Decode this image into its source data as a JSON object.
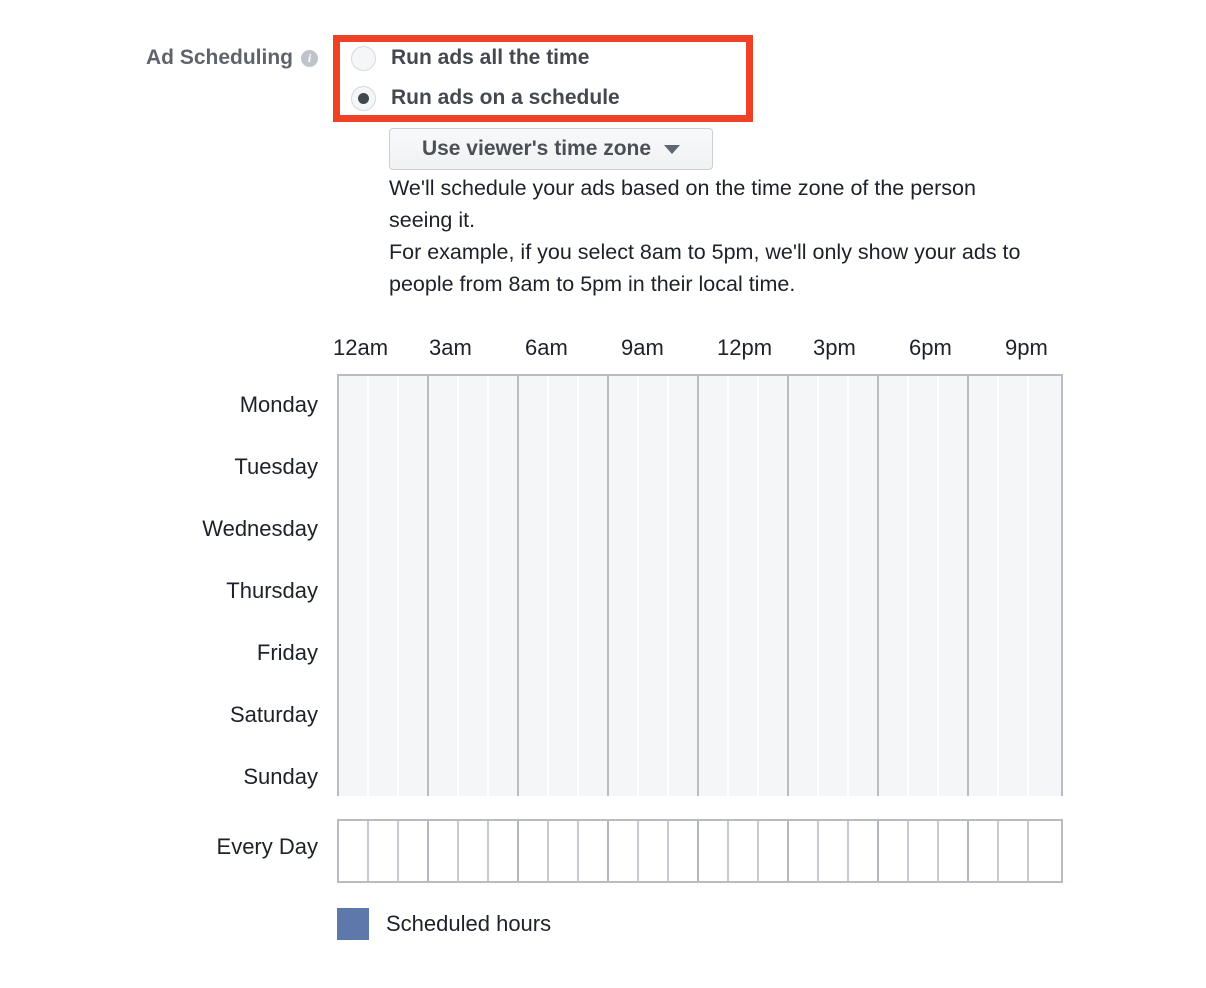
{
  "section": {
    "title": "Ad Scheduling",
    "info_icon_glyph": "i"
  },
  "highlight": {
    "color": "#ee4125"
  },
  "radio_group": {
    "options": [
      {
        "label": "Run ads all the time",
        "selected": false
      },
      {
        "label": "Run ads on a schedule",
        "selected": true
      }
    ]
  },
  "timezone_dropdown": {
    "label": "Use viewer's time zone"
  },
  "description": {
    "lines": [
      "We'll schedule your ads based on the time zone of the person",
      "seeing it.",
      "For example, if you select 8am to 5pm, we'll only show your ads to",
      "people from 8am to 5pm in their local time."
    ]
  },
  "schedule_grid": {
    "time_labels": [
      "12am",
      "3am",
      "6am",
      "9am",
      "12pm",
      "3pm",
      "6pm",
      "9pm"
    ],
    "day_labels": [
      "Monday",
      "Tuesday",
      "Wednesday",
      "Thursday",
      "Friday",
      "Saturday",
      "Sunday"
    ],
    "every_day_label": "Every Day",
    "hours_per_day": 24,
    "hours_per_group": 3,
    "scheduled_cells": []
  },
  "legend": {
    "label": "Scheduled hours",
    "swatch_color": "#5e78ac"
  }
}
